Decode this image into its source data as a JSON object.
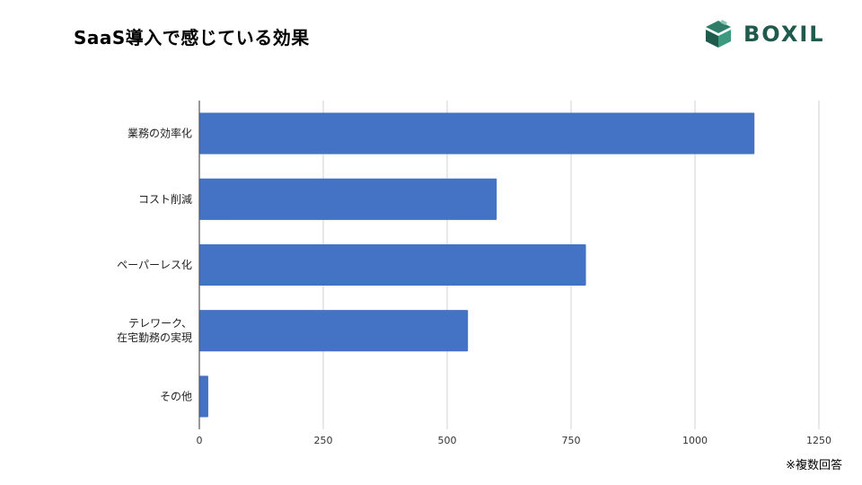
{
  "title": "SaaS導入で感じている効果",
  "logo": {
    "text": "BOXIL",
    "icon": "boxil-cube-icon",
    "color": "#1f5a4c"
  },
  "note": "※複数回答",
  "chart_data": {
    "type": "bar",
    "orientation": "horizontal",
    "categories": [
      "業務の効率化",
      "コスト削減",
      "ペーパーレス化",
      "テレワーク、\n在宅勤務の実現",
      "その他"
    ],
    "values": [
      1120,
      600,
      780,
      542,
      18
    ],
    "xlim": [
      0,
      1250
    ],
    "xticks": [
      0,
      250,
      500,
      750,
      1000,
      1250
    ],
    "bar_color": "#4472c4",
    "grid": true
  }
}
